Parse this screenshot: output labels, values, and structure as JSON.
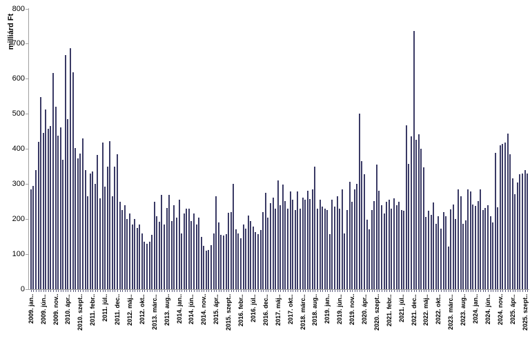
{
  "chart_data": {
    "type": "bar",
    "title": "",
    "xlabel": "",
    "ylabel": "milliárd Ft",
    "ylim": [
      0,
      800
    ],
    "yticks": [
      0,
      100,
      200,
      300,
      400,
      500,
      600,
      700,
      800
    ],
    "grid": false,
    "legend": "none",
    "bar_color": "#2f2f5c",
    "axis_color": "#a0a0a0",
    "frequency": "monthly",
    "n_bars": 202,
    "x_label_interval": 5,
    "x_labels": [
      "2009. jan..",
      "2009. jún..",
      "2009. nov..",
      "2010. ápr..",
      "2010. szept..",
      "2011. febr..",
      "2011. júl..",
      "2011. dec..",
      "2012. máj..",
      "2012. okt..",
      "2013. márc..",
      "2013. aug..",
      "2014. jan..",
      "2014. jún..",
      "2014. nov..",
      "2015. ápr..",
      "2015. szept..",
      "2016. febr..",
      "2016. júl..",
      "2016. dec..",
      "2017. máj..",
      "2017. okt..",
      "2018. márc..",
      "2018. aug..",
      "2019. jan..",
      "2019. jún..",
      "2019. nov..",
      "2020. ápr..",
      "2020. szept..",
      "2021. febr..",
      "2021. júl..",
      "2021. dec..",
      "2022. máj..",
      "2022. okt..",
      "2023. márc..",
      "2023. aug..",
      "2024. jan..",
      "2024. jún..",
      "2024. nov..",
      "2025. ápr..",
      "2025. szept.."
    ],
    "values": [
      285,
      295,
      340,
      420,
      548,
      445,
      512,
      457,
      465,
      617,
      520,
      437,
      462,
      370,
      668,
      485,
      688,
      619,
      403,
      373,
      387,
      429,
      340,
      265,
      330,
      335,
      300,
      383,
      260,
      419,
      293,
      350,
      423,
      266,
      350,
      385,
      250,
      225,
      240,
      200,
      215,
      185,
      200,
      175,
      185,
      160,
      135,
      130,
      135,
      155,
      250,
      209,
      193,
      268,
      185,
      232,
      268,
      195,
      240,
      205,
      255,
      160,
      215,
      230,
      230,
      195,
      215,
      185,
      205,
      150,
      124,
      110,
      112,
      125,
      160,
      265,
      190,
      155,
      153,
      158,
      218,
      220,
      301,
      170,
      160,
      145,
      185,
      172,
      210,
      195,
      178,
      162,
      157,
      168,
      220,
      275,
      205,
      245,
      262,
      230,
      310,
      240,
      298,
      252,
      230,
      278,
      255,
      225,
      278,
      230,
      262,
      255,
      280,
      258,
      285,
      350,
      230,
      255,
      235,
      230,
      225,
      157,
      255,
      235,
      265,
      230,
      285,
      160,
      225,
      307,
      250,
      285,
      301,
      500,
      366,
      327,
      199,
      170,
      225,
      252,
      355,
      280,
      240,
      215,
      250,
      255,
      230,
      260,
      240,
      250,
      225,
      223,
      468,
      357,
      436,
      737,
      426,
      442,
      400,
      347,
      206,
      223,
      213,
      248,
      186,
      209,
      172,
      219,
      209,
      121,
      227,
      242,
      200,
      284,
      265,
      186,
      196,
      284,
      278,
      242,
      237,
      252,
      284,
      225,
      231,
      240,
      209,
      191,
      389,
      233,
      410,
      415,
      419,
      443,
      384,
      316,
      270,
      305,
      327,
      329,
      340,
      330
    ]
  }
}
